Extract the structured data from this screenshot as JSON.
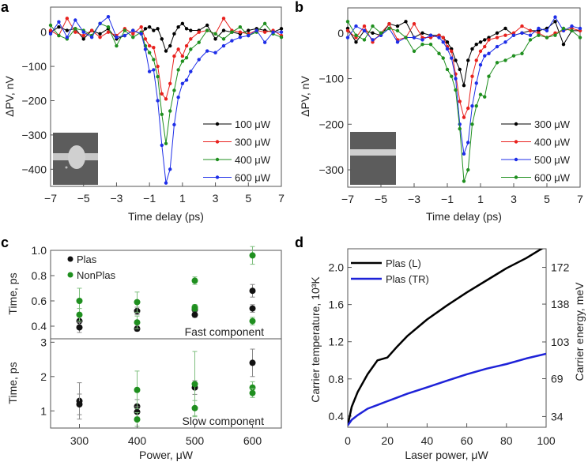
{
  "panel_labels": {
    "a": "a",
    "b": "b",
    "c": "c",
    "d": "d"
  },
  "chart_data": [
    {
      "panel": "a",
      "type": "line",
      "xlabel": "Time delay (ps)",
      "ylabel": "ΔPV, nV",
      "xlim": [
        -7,
        7
      ],
      "ylim": [
        -450,
        73
      ],
      "xticks": [
        -7,
        -5,
        -3,
        -1,
        1,
        3,
        5,
        7
      ],
      "xtick_labels": [
        "−7",
        "−5",
        "−3",
        "−1",
        "1",
        "3",
        "5",
        "7"
      ],
      "yticks": [
        0,
        -100,
        -200,
        -300,
        -400
      ],
      "ytick_labels": [
        "0",
        "−100",
        "−200",
        "−300",
        "−400"
      ],
      "legend_position": "bottom-right",
      "x": [
        -7,
        -6.5,
        -6,
        -5.5,
        -5,
        -4.5,
        -4,
        -3.5,
        -3,
        -2.5,
        -2,
        -1.5,
        -1.25,
        -1,
        -0.75,
        -0.5,
        -0.25,
        0,
        0.25,
        0.5,
        0.75,
        1,
        1.25,
        1.5,
        2,
        2.5,
        3,
        3.5,
        4,
        4.5,
        5,
        5.5,
        6,
        6.5,
        7
      ],
      "series": [
        {
          "name": "100 μW",
          "color": "#000000",
          "values": [
            0,
            15,
            5,
            10,
            -20,
            5,
            -5,
            10,
            -20,
            -10,
            5,
            -5,
            10,
            15,
            5,
            10,
            -20,
            -55,
            -40,
            -5,
            15,
            25,
            10,
            5,
            5,
            20,
            -20,
            5,
            0,
            -5,
            5,
            10,
            5,
            0,
            10
          ]
        },
        {
          "name": "300 μW",
          "color": "#e8211e",
          "values": [
            5,
            -10,
            40,
            0,
            -10,
            5,
            -15,
            0,
            -10,
            10,
            -5,
            15,
            -20,
            -40,
            -45,
            -100,
            -180,
            -195,
            -150,
            -70,
            -50,
            -70,
            -40,
            -20,
            0,
            5,
            -5,
            40,
            5,
            0,
            -5,
            5,
            0,
            5,
            -10
          ]
        },
        {
          "name": "400 μW",
          "color": "#1f8f1f",
          "values": [
            20,
            -10,
            -20,
            10,
            5,
            -10,
            25,
            15,
            -40,
            5,
            -15,
            0,
            -40,
            -60,
            -80,
            -130,
            -240,
            -325,
            -230,
            -170,
            -110,
            -85,
            -75,
            -50,
            -30,
            5,
            -5,
            -20,
            0,
            15,
            -10,
            0,
            25,
            -5,
            -15
          ]
        },
        {
          "name": "600 μW",
          "color": "#1e2ee8",
          "values": [
            -5,
            30,
            -15,
            35,
            0,
            -15,
            25,
            45,
            -15,
            -10,
            5,
            -5,
            -50,
            -115,
            -110,
            -200,
            -330,
            -440,
            -400,
            -270,
            -190,
            -150,
            -140,
            -115,
            -80,
            -55,
            -60,
            -40,
            -25,
            -15,
            -10,
            5,
            -30,
            0,
            0
          ]
        }
      ]
    },
    {
      "panel": "b",
      "type": "line",
      "xlabel": "Time delay (ps)",
      "ylabel": "ΔPV, nV",
      "xlim": [
        -7,
        7
      ],
      "ylim": [
        -338,
        55
      ],
      "xticks": [
        -7,
        -5,
        -3,
        -1,
        1,
        3,
        5,
        7
      ],
      "xtick_labels": [
        "−7",
        "−5",
        "−3",
        "−1",
        "1",
        "3",
        "5",
        "7"
      ],
      "yticks": [
        0,
        -100,
        -200,
        -300
      ],
      "ytick_labels": [
        "0",
        "−100",
        "−200",
        "−300"
      ],
      "legend_position": "bottom-right",
      "x": [
        -7,
        -6.5,
        -6,
        -5.5,
        -5,
        -4.5,
        -4,
        -3.5,
        -3,
        -2.5,
        -2,
        -1.5,
        -1.25,
        -1,
        -0.75,
        -0.5,
        -0.25,
        0,
        0.25,
        0.5,
        0.75,
        1,
        1.25,
        1.5,
        2,
        2.5,
        3,
        3.5,
        4,
        4.5,
        5,
        5.5,
        6,
        6.5,
        7
      ],
      "series": [
        {
          "name": "300 μW",
          "color": "#000000",
          "values": [
            10,
            -20,
            5,
            0,
            -5,
            20,
            15,
            25,
            -10,
            0,
            -5,
            -5,
            -10,
            -20,
            -35,
            -60,
            -80,
            -115,
            -60,
            -35,
            -25,
            -20,
            -15,
            -10,
            0,
            10,
            -5,
            0,
            5,
            5,
            10,
            25,
            -25,
            5,
            5
          ]
        },
        {
          "name": "400 μW",
          "color": "#e8211e",
          "values": [
            5,
            -10,
            15,
            -20,
            0,
            20,
            -15,
            -10,
            20,
            -10,
            -10,
            -5,
            -10,
            -30,
            -40,
            -90,
            -150,
            -185,
            -165,
            -95,
            -60,
            -40,
            -30,
            -15,
            -10,
            -5,
            0,
            15,
            5,
            0,
            -10,
            0,
            5,
            10,
            5
          ]
        },
        {
          "name": "500 μW",
          "color": "#1e2ee8",
          "values": [
            -10,
            15,
            5,
            -15,
            -5,
            10,
            -20,
            -10,
            -10,
            -15,
            -5,
            -10,
            -20,
            -35,
            -55,
            -100,
            -200,
            -265,
            -240,
            -160,
            -110,
            -70,
            -50,
            -45,
            -30,
            -20,
            -5,
            0,
            -5,
            10,
            5,
            35,
            5,
            15,
            10
          ]
        },
        {
          "name": "600 μW",
          "color": "#1f8f1f",
          "values": [
            25,
            -5,
            -15,
            15,
            0,
            10,
            5,
            -10,
            -40,
            -25,
            -25,
            -45,
            -55,
            -80,
            -95,
            -125,
            -210,
            -325,
            -300,
            -200,
            -160,
            -135,
            -140,
            -95,
            -65,
            -60,
            -50,
            -45,
            -15,
            -5,
            -10,
            -5,
            10,
            5,
            -10
          ]
        }
      ]
    },
    {
      "panel": "c",
      "type": "scatter",
      "xlabel": "Power, μW",
      "ylabel_top": "Time, ps",
      "ylabel_bottom": "Time, ps",
      "xlim": [
        250,
        650
      ],
      "xticks": [
        300,
        400,
        500,
        600
      ],
      "xtick_labels": [
        "300",
        "400",
        "500",
        "600"
      ],
      "top": {
        "annotation": "Fast component",
        "ylim": [
          0.3,
          1.0
        ],
        "yticks": [
          0.4,
          0.6,
          0.8,
          1.0
        ],
        "ytick_labels": [
          "0.4",
          "0.6",
          "0.8",
          "1.0"
        ],
        "series": [
          {
            "name": "Plas",
            "color": "#111111",
            "points": [
              [
                300,
                0.44,
                0.04
              ],
              [
                300,
                0.39,
                0.04
              ],
              [
                400,
                0.52,
                0.03
              ],
              [
                400,
                0.38,
                0.02
              ],
              [
                500,
                0.53,
                0.02
              ],
              [
                500,
                0.49,
                0.02
              ],
              [
                600,
                0.68,
                0.05
              ],
              [
                600,
                0.54,
                0.03
              ]
            ]
          },
          {
            "name": "NonPlas",
            "color": "#1f8f1f",
            "points": [
              [
                300,
                0.6,
                0.1
              ],
              [
                300,
                0.49,
                0.05
              ],
              [
                400,
                0.59,
                0.08
              ],
              [
                400,
                0.43,
                0.05
              ],
              [
                500,
                0.76,
                0.03
              ],
              [
                500,
                0.55,
                0.02
              ],
              [
                500,
                0.54,
                0.02
              ],
              [
                600,
                0.96,
                0.07
              ],
              [
                600,
                0.44,
                0.03
              ]
            ]
          }
        ]
      },
      "bottom": {
        "annotation": "Slow component",
        "ylim": [
          0.5,
          3.1
        ],
        "yticks": [
          1,
          2,
          3
        ],
        "ytick_labels": [
          "1",
          "2",
          "3"
        ],
        "series": [
          {
            "name": "Plas",
            "color": "#111111",
            "points": [
              [
                300,
                1.29,
                0.53
              ],
              [
                300,
                1.19,
                0.3
              ],
              [
                400,
                1.13,
                0.2
              ],
              [
                400,
                0.97,
                0.15
              ],
              [
                500,
                1.68,
                0.2
              ],
              [
                600,
                2.4,
                0.4
              ]
            ]
          },
          {
            "name": "NonPlas",
            "color": "#1f8f1f",
            "points": [
              [
                400,
                1.61,
                0.55
              ],
              [
                400,
                0.75,
                0.2
              ],
              [
                500,
                1.78,
                0.95
              ],
              [
                500,
                1.08,
                0.22
              ],
              [
                600,
                1.68,
                0.17
              ],
              [
                600,
                1.52,
                0.13
              ]
            ]
          }
        ]
      },
      "legend_position": "top-left"
    },
    {
      "panel": "d",
      "type": "line",
      "xlabel": "Laser power, μW",
      "ylabel": "Carrier temperature, 10³K",
      "ylabel_right": "Carrier energy, meV",
      "xlim": [
        0,
        100
      ],
      "ylim": [
        0.28,
        2.2
      ],
      "xticks": [
        0,
        20,
        40,
        60,
        80,
        100
      ],
      "xtick_labels": [
        "0",
        "20",
        "40",
        "60",
        "80",
        "100"
      ],
      "yticks": [
        0.4,
        0.8,
        1.2,
        1.6,
        2.0
      ],
      "ytick_labels": [
        "0.4",
        "0.8",
        "1.2",
        "1.6",
        "2.0"
      ],
      "yticks_right": [
        34,
        69,
        103,
        138,
        172
      ],
      "ytick_right_labels": [
        "34",
        "69",
        "103",
        "138",
        "172"
      ],
      "legend_position": "top-left",
      "x": [
        0,
        2,
        5,
        10,
        15,
        20,
        25,
        30,
        40,
        50,
        60,
        70,
        80,
        90,
        100
      ],
      "series": [
        {
          "name": "Plas (L)",
          "color": "#000000",
          "values": [
            0.3,
            0.5,
            0.66,
            0.85,
            1.0,
            1.03,
            1.15,
            1.26,
            1.44,
            1.59,
            1.73,
            1.86,
            1.99,
            2.1,
            2.23
          ]
        },
        {
          "name": "Plas (TR)",
          "color": "#1e22d8",
          "values": [
            0.3,
            0.36,
            0.41,
            0.48,
            0.52,
            0.56,
            0.6,
            0.64,
            0.71,
            0.78,
            0.85,
            0.91,
            0.96,
            1.02,
            1.07
          ]
        }
      ]
    }
  ]
}
